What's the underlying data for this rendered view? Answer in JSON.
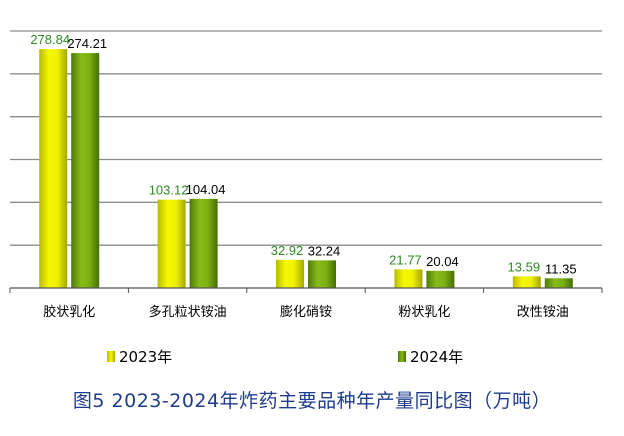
{
  "chart_data": {
    "type": "bar",
    "categories": [
      "胶状乳化",
      "多孔粒状铵油",
      "膨化硝铵",
      "粉状乳化",
      "改性铵油"
    ],
    "series": [
      {
        "name": "2023年",
        "values": [
          278.84,
          103.12,
          32.92,
          21.77,
          13.59
        ],
        "color": "#e3e600",
        "label_color": "#2e8b22"
      },
      {
        "name": "2024年",
        "values": [
          274.21,
          104.04,
          32.24,
          20.04,
          11.35
        ],
        "color": "#6fa10e",
        "label_color": "#000000"
      }
    ],
    "data_labels": [
      [
        "278.84",
        "103.12",
        "32.92",
        "21.77",
        "13.59"
      ],
      [
        "274.21",
        "104.04",
        "32.24",
        "20.04",
        "11.35"
      ]
    ],
    "ylim": [
      0,
      300
    ],
    "grid": true,
    "legend": "bottom",
    "title": "",
    "xlabel": "",
    "ylabel": ""
  },
  "legend": [
    {
      "label": "2023年",
      "color": "#e3e600"
    },
    {
      "label": "2024年",
      "color": "#6fa10e"
    }
  ],
  "caption": "图5   2023-2024年炸药主要品种年产量同比图（万吨）"
}
